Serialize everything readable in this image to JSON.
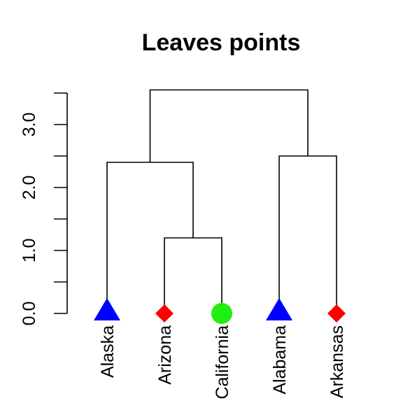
{
  "chart_data": {
    "type": "dendrogram",
    "title": "Leaves points",
    "xlabel": "",
    "ylabel": "",
    "ylim": [
      0,
      3.5
    ],
    "y_ticks": [
      0,
      0.5,
      1,
      1.5,
      2,
      2.5,
      3,
      3.5
    ],
    "y_tick_labels": [
      {
        "value": 0,
        "label": "0.0"
      },
      {
        "value": 1,
        "label": "1.0"
      },
      {
        "value": 2,
        "label": "2.0"
      },
      {
        "value": 3,
        "label": "3.0"
      }
    ],
    "leaves": [
      {
        "label": "Alaska",
        "shape": "triangle",
        "color": "#0000ff"
      },
      {
        "label": "Arizona",
        "shape": "diamond",
        "color": "#ff0000"
      },
      {
        "label": "California",
        "shape": "circle",
        "color": "#22ee11"
      },
      {
        "label": "Alabama",
        "shape": "triangle",
        "color": "#0000ff"
      },
      {
        "label": "Arkansas",
        "shape": "diamond",
        "color": "#ff0000"
      }
    ],
    "merges": [
      {
        "left": 1,
        "right": 2,
        "height": 1.2
      },
      {
        "left": 0,
        "right": "m0",
        "height": 2.4
      },
      {
        "left": 3,
        "right": 4,
        "height": 2.5
      },
      {
        "left": "m1",
        "right": "m2",
        "height": 3.55
      }
    ],
    "grid": false
  }
}
